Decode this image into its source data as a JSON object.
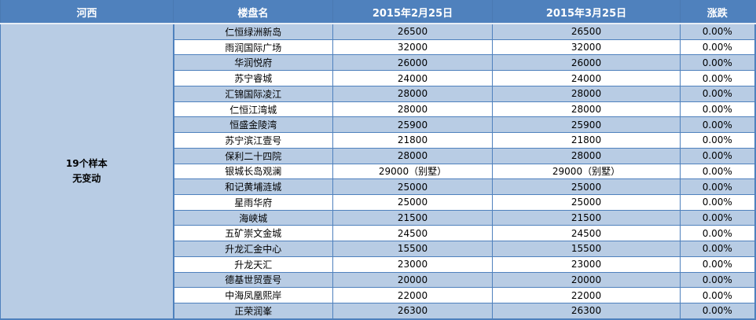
{
  "table": {
    "columns": [
      {
        "label": "河西"
      },
      {
        "label": "楼盘名"
      },
      {
        "label": "2015年2月25日"
      },
      {
        "label": "2015年3月25日"
      },
      {
        "label": "涨跌"
      }
    ],
    "region": {
      "summary_line1": "19个样本",
      "summary_line2": "无变动"
    },
    "rows": [
      {
        "name": "仁恒绿洲新岛",
        "feb": "26500",
        "mar": "26500",
        "change": "0.00%"
      },
      {
        "name": "雨润国际广场",
        "feb": "32000",
        "mar": "32000",
        "change": "0.00%"
      },
      {
        "name": "华润悦府",
        "feb": "26000",
        "mar": "26000",
        "change": "0.00%"
      },
      {
        "name": "苏宁睿城",
        "feb": "24000",
        "mar": "24000",
        "change": "0.00%"
      },
      {
        "name": "汇锦国际凌江",
        "feb": "28000",
        "mar": "28000",
        "change": "0.00%"
      },
      {
        "name": "仁恒江湾城",
        "feb": "28000",
        "mar": "28000",
        "change": "0.00%"
      },
      {
        "name": "恒盛金陵湾",
        "feb": "25900",
        "mar": "25900",
        "change": "0.00%"
      },
      {
        "name": "苏宁滨江壹号",
        "feb": "21800",
        "mar": "21800",
        "change": "0.00%"
      },
      {
        "name": "保利二十四院",
        "feb": "28000",
        "mar": "28000",
        "change": "0.00%"
      },
      {
        "name": "银城长岛观澜",
        "feb": "29000（别墅）",
        "mar": "29000（别墅）",
        "change": "0.00%"
      },
      {
        "name": "和记黄埔涟城",
        "feb": "25000",
        "mar": "25000",
        "change": "0.00%"
      },
      {
        "name": "星雨华府",
        "feb": "25000",
        "mar": "25000",
        "change": "0.00%"
      },
      {
        "name": "海峡城",
        "feb": "21500",
        "mar": "21500",
        "change": "0.00%"
      },
      {
        "name": "五矿崇文金城",
        "feb": "24500",
        "mar": "24500",
        "change": "0.00%"
      },
      {
        "name": "升龙汇金中心",
        "feb": "15500",
        "mar": "15500",
        "change": "0.00%"
      },
      {
        "name": "升龙天汇",
        "feb": "23000",
        "mar": "23000",
        "change": "0.00%"
      },
      {
        "name": "德基世贸壹号",
        "feb": "20000",
        "mar": "20000",
        "change": "0.00%"
      },
      {
        "name": "中海凤凰熙岸",
        "feb": "22000",
        "mar": "22000",
        "change": "0.00%"
      },
      {
        "name": "正荣润峯",
        "feb": "26300",
        "mar": "26300",
        "change": "0.00%"
      }
    ]
  },
  "colors": {
    "header_bg": "#4F81BD",
    "header_text": "#FFFFFF",
    "alt_row_bg": "#B8CCE4",
    "row_bg": "#FFFFFF",
    "border": "#4F81BD",
    "body_text": "#000000"
  }
}
